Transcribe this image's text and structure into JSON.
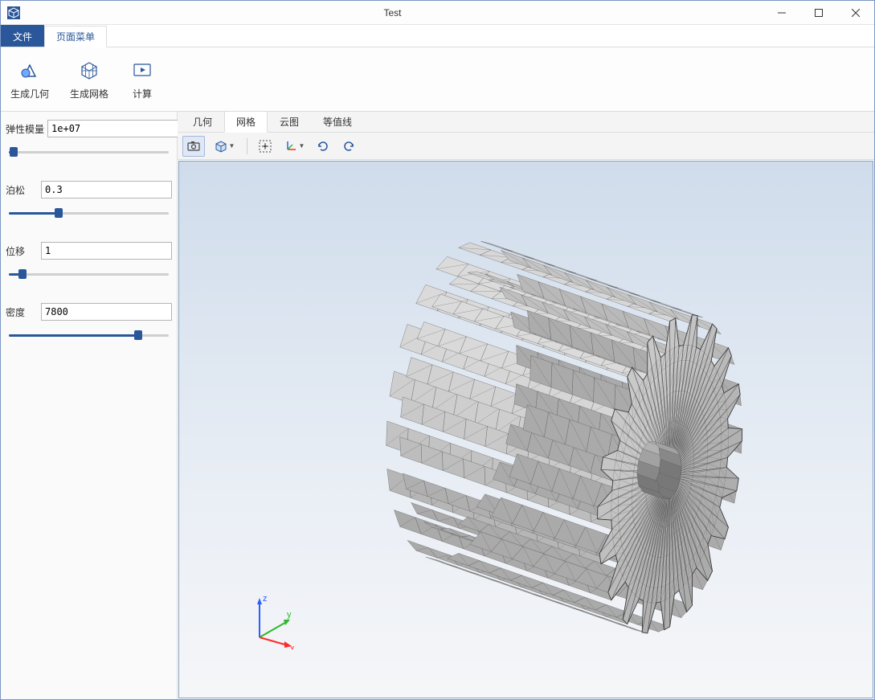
{
  "window": {
    "title": "Test"
  },
  "menu": {
    "file": "文件",
    "page_menu": "页面菜单"
  },
  "ribbon": {
    "gen_geometry": "生成几何",
    "gen_mesh": "生成网格",
    "compute": "计算"
  },
  "props": {
    "elastic_modulus": {
      "label": "弹性模量",
      "value": "1e+07",
      "fill_pct": 3
    },
    "poisson": {
      "label": "泊松",
      "value": "0.3",
      "fill_pct": 30
    },
    "displacement": {
      "label": "位移",
      "value": "1",
      "fill_pct": 8
    },
    "density": {
      "label": "密度",
      "value": "7800",
      "fill_pct": 78
    }
  },
  "viewtabs": {
    "geometry": "几何",
    "mesh": "网格",
    "cloud": "云图",
    "contour": "等值线",
    "active": "mesh"
  },
  "triad": {
    "x": "x",
    "y": "y",
    "z": "z"
  },
  "colors": {
    "accent": "#2a579a",
    "viewport_top": "#cfdceb",
    "viewport_bottom": "#f5f6f8",
    "mesh_fill": "#b8b8b8",
    "mesh_stroke": "#555555",
    "mesh_dark": "#6f6f6f",
    "mesh_light": "#d2d2d2",
    "axis_x": "#ff2a2a",
    "axis_y": "#2eb82e",
    "axis_z": "#2a5fff"
  }
}
